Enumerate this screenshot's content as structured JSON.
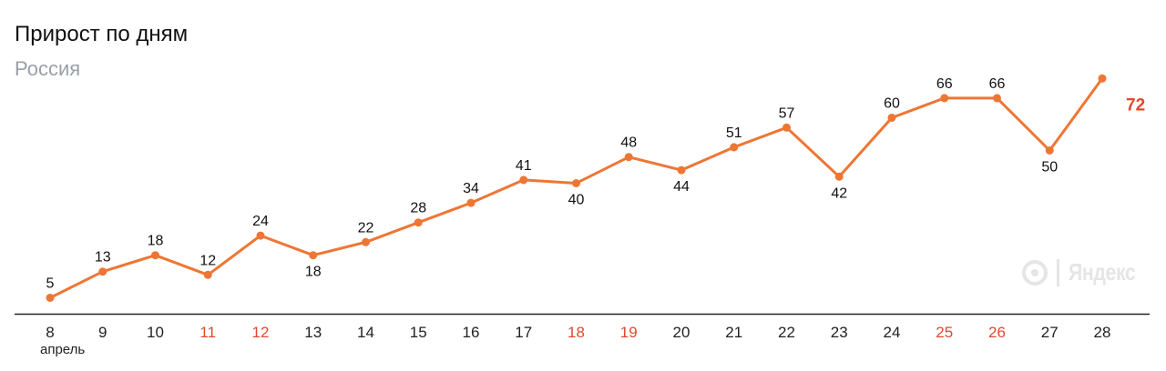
{
  "header": {
    "title": "Прирост по дням",
    "subtitle": "Россия"
  },
  "watermark": {
    "text": "Яндекс",
    "icon": "yandex-logo-icon"
  },
  "colors": {
    "line": "#ee7634",
    "last_label": "#e2472f",
    "holiday_tick": "#e2472f",
    "tick": "#222222",
    "axis": "#222222",
    "value_label": "#111111"
  },
  "chart_data": {
    "type": "line",
    "title": "Прирост по дням",
    "subtitle": "Россия",
    "xlabel": "",
    "ylabel": "",
    "month_label": "апрель",
    "categories": [
      "8",
      "9",
      "10",
      "11",
      "12",
      "13",
      "14",
      "15",
      "16",
      "17",
      "18",
      "19",
      "20",
      "21",
      "22",
      "23",
      "24",
      "25",
      "26",
      "27",
      "28"
    ],
    "highlighted_categories": [
      "11",
      "12",
      "18",
      "19",
      "25",
      "26"
    ],
    "series": [
      {
        "values": [
          5,
          13,
          18,
          12,
          24,
          18,
          22,
          28,
          34,
          41,
          40,
          48,
          44,
          51,
          57,
          42,
          60,
          66,
          66,
          50,
          72
        ]
      }
    ],
    "label_positions": [
      "above",
      "above",
      "above",
      "above",
      "above",
      "below",
      "above",
      "above",
      "above",
      "above",
      "below",
      "above",
      "below",
      "above",
      "above",
      "below",
      "above",
      "above",
      "above",
      "below",
      "right"
    ],
    "ylim": [
      0,
      80
    ],
    "grid": false,
    "legend": "none"
  }
}
